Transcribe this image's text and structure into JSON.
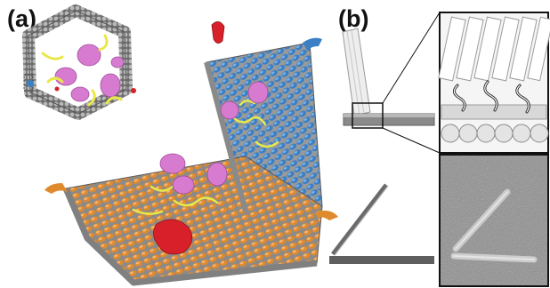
{
  "panels": {
    "a": {
      "label": "(a)"
    },
    "b": {
      "label": "(b)"
    }
  },
  "colors": {
    "scaffold_gray": "#8a8a8a",
    "helix_blue": "#3b7fc4",
    "helix_orange": "#e08a2e",
    "protein_pink": "#d77bd0",
    "linker_yellow": "#e8e84a",
    "marker_red": "#d8202a",
    "tem_background": "#8c8c8c",
    "schematic_gray": "#5f5f5f"
  },
  "icons": [
    "origami-hinge-model",
    "hexagonal-cross-section",
    "zoom-inset",
    "tem-micrograph"
  ]
}
